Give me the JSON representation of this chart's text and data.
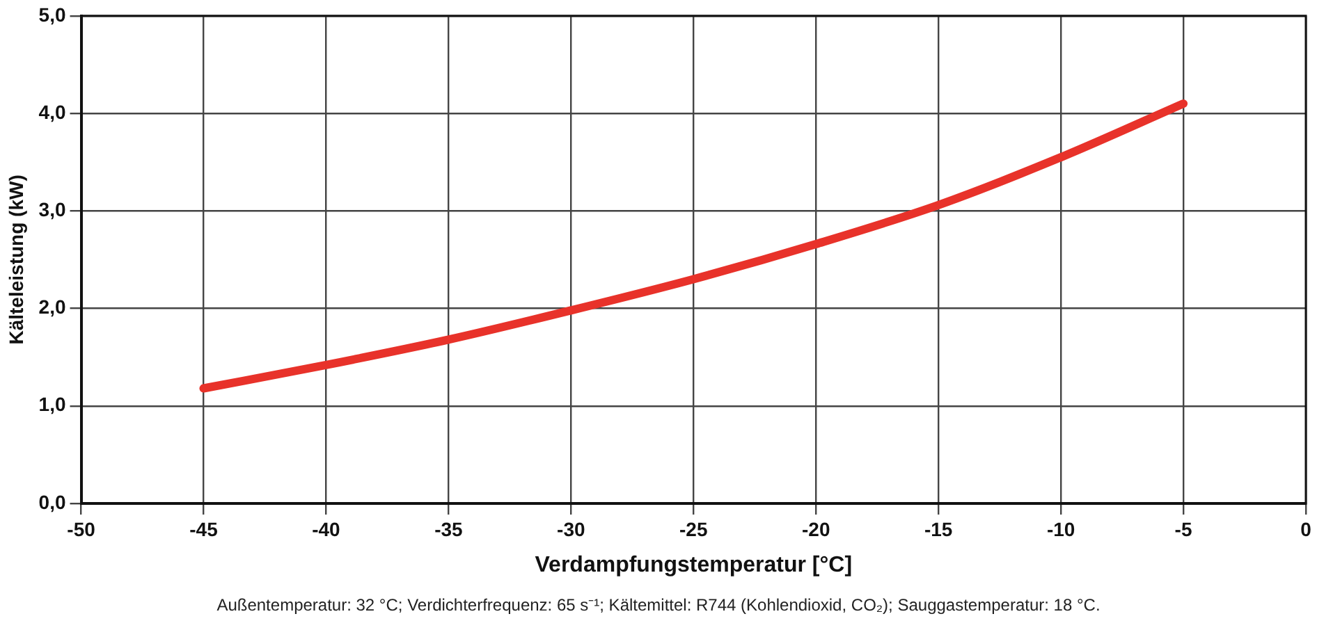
{
  "chart_data": {
    "type": "line",
    "xlabel": "Verdampfungstemperatur [°C]",
    "ylabel": "Kälteleistung (kW)",
    "annotations": [
      "Außentemperatur: 32 °C; Verdichterfrequenz: 65 s⁻¹; Kältemittel: R744 (Kohlendioxid, CO₂); Sauggastemperatur: 18 °C."
    ],
    "x": [
      -45,
      -40,
      -35,
      -30,
      -25,
      -20,
      -15,
      -10,
      -5
    ],
    "series": [
      {
        "color": "#e8322a",
        "values": [
          1.18,
          1.42,
          1.68,
          1.98,
          2.3,
          2.66,
          3.06,
          3.55,
          4.1
        ]
      }
    ],
    "xlim": [
      -50,
      0
    ],
    "xticks": [
      -50,
      -45,
      -40,
      -35,
      -30,
      -25,
      -20,
      -15,
      -10,
      -5,
      0
    ],
    "ylim": [
      0,
      5
    ],
    "yticks": [
      {
        "value": 0,
        "label": "0,0"
      },
      {
        "value": 1,
        "label": "1,0"
      },
      {
        "value": 2,
        "label": "2,0"
      },
      {
        "value": 3,
        "label": "3,0"
      },
      {
        "value": 4,
        "label": "4,0"
      },
      {
        "value": 5,
        "label": "5,0"
      }
    ],
    "grid": true,
    "legend": false,
    "marker": "none",
    "line_style": "solid"
  }
}
